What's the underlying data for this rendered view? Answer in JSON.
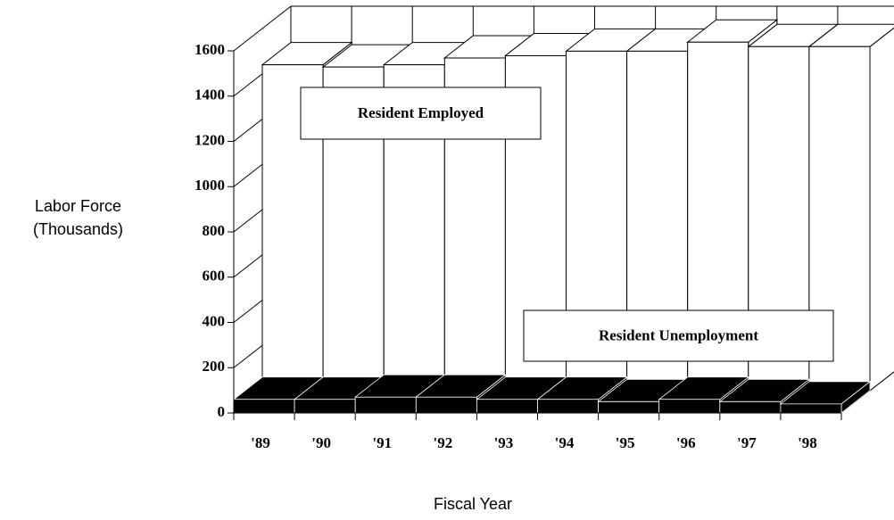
{
  "chart_data": {
    "type": "bar3d",
    "ylabel": "Labor Force (Thousands)",
    "xlabel": "Fiscal Year",
    "categories": [
      "'89",
      "'90",
      "'91",
      "'92",
      "'93",
      "'94",
      "'95",
      "'96",
      "'97",
      "'98"
    ],
    "series": [
      {
        "name": "Resident Employed",
        "color": "#ffffff",
        "values": [
          1440,
          1430,
          1440,
          1470,
          1480,
          1500,
          1500,
          1540,
          1520,
          1520
        ]
      },
      {
        "name": "Resident Unemployment",
        "color": "#000000",
        "values": [
          60,
          60,
          70,
          70,
          60,
          60,
          50,
          60,
          50,
          40
        ]
      }
    ],
    "ylim": [
      0,
      1600
    ],
    "yticks": [
      0,
      200,
      400,
      600,
      800,
      1000,
      1200,
      1400,
      1600
    ],
    "grid": true
  }
}
